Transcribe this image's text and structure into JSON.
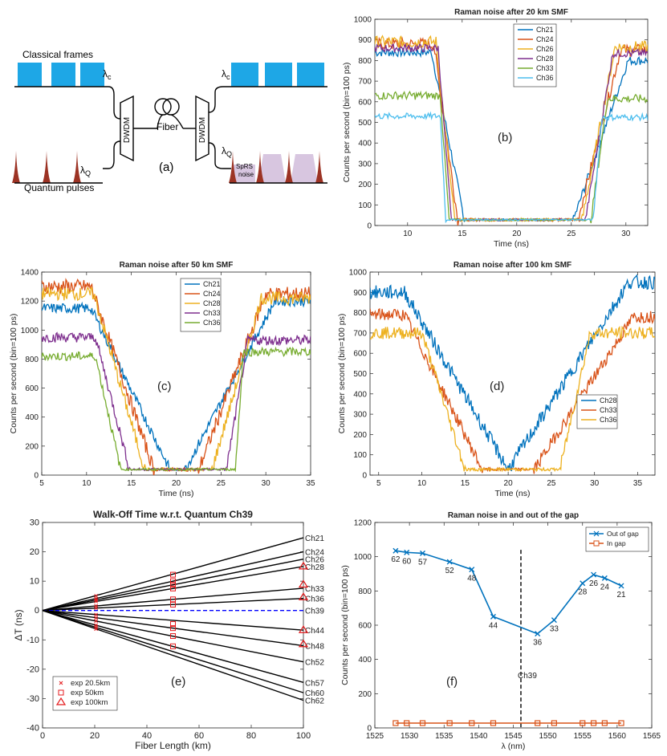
{
  "schematic": {
    "label": "(a)",
    "classical_label": "Classical frames",
    "quantum_label": "Quantum pulses",
    "lambda_c": "λ",
    "lambda_c_sub": "c",
    "lambda_q": "λ",
    "lambda_q_sub": "Q",
    "dwdm": "DWDM",
    "fiber": "Fiber",
    "sprs1": "SpRS",
    "sprs2": "noise",
    "colors": {
      "classical": "#1ea7e6",
      "quantum": "#9c3324",
      "sprs": "#d8c6e0"
    }
  },
  "chart_data": [
    {
      "id": "b",
      "type": "line",
      "panel_label": "(b)",
      "title": "Raman noise after 20 km SMF",
      "xlabel": "Time (ns)",
      "ylabel": "Counts per second (bin=100 ps)",
      "xlim": [
        7,
        32
      ],
      "ylim": [
        0,
        1000
      ],
      "xticks": [
        10,
        15,
        20,
        25,
        30
      ],
      "yticks": [
        0,
        100,
        200,
        300,
        400,
        500,
        600,
        700,
        800,
        900,
        1000
      ],
      "legend_pos": "top-right",
      "series": [
        {
          "name": "Ch21",
          "color": "#0072bd",
          "high": 840,
          "t1": 12.2,
          "t2": 15.2,
          "t3": 25.2,
          "t4": 30.2,
          "noise": 22,
          "end": 800
        },
        {
          "name": "Ch24",
          "color": "#d95319",
          "high": 880,
          "t1": 12.4,
          "t2": 14.6,
          "t3": 25.6,
          "t4": 29.5,
          "noise": 30,
          "end": 850
        },
        {
          "name": "Ch26",
          "color": "#edb120",
          "high": 890,
          "t1": 12.6,
          "t2": 14.3,
          "t3": 26.0,
          "t4": 29.0,
          "noise": 30,
          "end": 865
        },
        {
          "name": "Ch28",
          "color": "#7e2f8e",
          "high": 860,
          "t1": 12.8,
          "t2": 14.0,
          "t3": 26.3,
          "t4": 28.8,
          "noise": 20,
          "end": 835
        },
        {
          "name": "Ch33",
          "color": "#77ac30",
          "high": 630,
          "t1": 13.0,
          "t2": 13.8,
          "t3": 26.8,
          "t4": 28.3,
          "noise": 20,
          "end": 615
        },
        {
          "name": "Ch36",
          "color": "#4dbeee",
          "high": 530,
          "t1": 13.0,
          "t2": 13.5,
          "t3": 27.0,
          "t4": 27.8,
          "noise": 15,
          "end": 525
        }
      ]
    },
    {
      "id": "c",
      "type": "line",
      "panel_label": "(c)",
      "title": "Raman noise after 50 km SMF",
      "xlabel": "Time (ns)",
      "ylabel": "Counts per second (bin=100 ps)",
      "xlim": [
        5,
        35
      ],
      "ylim": [
        0,
        1400
      ],
      "xticks": [
        5,
        10,
        15,
        20,
        25,
        30,
        35
      ],
      "yticks": [
        0,
        200,
        400,
        600,
        800,
        1000,
        1200,
        1400
      ],
      "legend_pos": "top-right",
      "series": [
        {
          "name": "Ch21",
          "color": "#0072bd",
          "high": 1150,
          "t1": 10.5,
          "t2": 19.3,
          "t3": 21.0,
          "t4": 31.0,
          "noise": 35,
          "end": 1200
        },
        {
          "name": "Ch24",
          "color": "#d95319",
          "high": 1300,
          "t1": 10.5,
          "t2": 17.5,
          "t3": 22.5,
          "t4": 30.0,
          "noise": 50,
          "end": 1250
        },
        {
          "name": "Ch28",
          "color": "#edb120",
          "high": 1250,
          "t1": 10.8,
          "t2": 16.5,
          "t3": 24.0,
          "t4": 29.5,
          "noise": 45,
          "end": 1220
        },
        {
          "name": "Ch33",
          "color": "#7e2f8e",
          "high": 950,
          "t1": 11.0,
          "t2": 14.8,
          "t3": 25.6,
          "t4": 28.0,
          "noise": 35,
          "end": 930
        },
        {
          "name": "Ch36",
          "color": "#77ac30",
          "high": 820,
          "t1": 11.0,
          "t2": 13.8,
          "t3": 26.6,
          "t4": 27.5,
          "noise": 30,
          "end": 850
        }
      ]
    },
    {
      "id": "d",
      "type": "line",
      "panel_label": "(d)",
      "title": "Raman noise after 100 km SMF",
      "xlabel": "Time (ns)",
      "ylabel": "Counts per second (bin=100 ps)",
      "xlim": [
        4,
        37
      ],
      "ylim": [
        0,
        1000
      ],
      "xticks": [
        5,
        10,
        15,
        20,
        25,
        30,
        35
      ],
      "yticks": [
        0,
        100,
        200,
        300,
        400,
        500,
        600,
        700,
        800,
        900,
        1000
      ],
      "legend_pos": "right",
      "series": [
        {
          "name": "Ch28",
          "color": "#0072bd",
          "high": 900,
          "t1": 8.0,
          "t2": 20.0,
          "t3": 20.0,
          "t4": 34.0,
          "noise": 35,
          "end": 950
        },
        {
          "name": "Ch33",
          "color": "#d95319",
          "high": 790,
          "t1": 8.0,
          "t2": 17.0,
          "t3": 23.0,
          "t4": 34.5,
          "noise": 30,
          "end": 780
        },
        {
          "name": "Ch36",
          "color": "#edb120",
          "high": 700,
          "t1": 10.0,
          "t2": 15.0,
          "t3": 26.0,
          "t4": 29.5,
          "noise": 30,
          "end": 700
        }
      ]
    },
    {
      "id": "e",
      "type": "line",
      "panel_label": "(e)",
      "title": "Walk-Off Time w.r.t. Quantum Ch39",
      "xlabel": "Fiber Length (km)",
      "ylabel": "ΔT (ns)",
      "xlim": [
        0,
        100
      ],
      "ylim": [
        -40,
        30
      ],
      "xticks": [
        0,
        20,
        40,
        60,
        80,
        100
      ],
      "yticks": [
        -40,
        -30,
        -20,
        -10,
        0,
        10,
        20,
        30
      ],
      "legend_pos": "bottom-left",
      "legend": [
        "exp 20.5km",
        "exp 50km",
        "exp 100km"
      ],
      "channels": [
        {
          "name": "Ch21",
          "end": 24.8
        },
        {
          "name": "Ch24",
          "end": 20.0
        },
        {
          "name": "Ch26",
          "end": 17.5
        },
        {
          "name": "Ch28",
          "end": 15.0
        },
        {
          "name": "Ch33",
          "end": 7.6
        },
        {
          "name": "Ch36",
          "end": 4.1
        },
        {
          "name": "Ch39",
          "end": 0,
          "dashed": true
        },
        {
          "name": "Ch44",
          "end": -6.7
        },
        {
          "name": "Ch48",
          "end": -12.0
        },
        {
          "name": "Ch52",
          "end": -17.5
        },
        {
          "name": "Ch57",
          "end": -24.5
        },
        {
          "name": "Ch60",
          "end": -28.0
        },
        {
          "name": "Ch62",
          "end": -30.6
        }
      ],
      "exp_20km": {
        "x": 20.5,
        "y": [
          5.0,
          4.1,
          3.6,
          3.1,
          1.6,
          0.8,
          -1.4,
          -2.5,
          -3.6,
          -5.0,
          -5.7,
          -6.3
        ]
      },
      "exp_50km": {
        "x": 50,
        "y": [
          12.2,
          10.0,
          8.8,
          7.5,
          3.8,
          2.0,
          -4.6,
          -6.0,
          -8.7,
          -12.2
        ]
      },
      "exp_100km": {
        "x": 100,
        "y": [
          15.0,
          8.8,
          4.5,
          -6.7,
          -11.5
        ]
      }
    },
    {
      "id": "f",
      "type": "line",
      "panel_label": "(f)",
      "title": "Raman noise in and out of the gap",
      "xlabel": "λ (nm)",
      "ylabel": "Counts per second (bin=100 ps)",
      "xlim": [
        1525,
        1565
      ],
      "ylim": [
        0,
        1200
      ],
      "xticks": [
        1525,
        1530,
        1535,
        1540,
        1545,
        1550,
        1555,
        1560,
        1565
      ],
      "yticks": [
        0,
        200,
        400,
        600,
        800,
        1000,
        1200
      ],
      "legend_pos": "top-right",
      "vline": {
        "x": 1546.1,
        "label": "Ch39"
      },
      "series": [
        {
          "name": "Out of gap",
          "color": "#0072bd",
          "x": [
            1528.0,
            1529.6,
            1531.9,
            1535.8,
            1539.0,
            1542.1,
            1548.5,
            1550.9,
            1555.0,
            1556.6,
            1558.2,
            1560.6
          ],
          "y": [
            1035,
            1025,
            1020,
            970,
            925,
            650,
            550,
            630,
            845,
            895,
            875,
            830
          ],
          "labels": [
            "62",
            "60",
            "57",
            "52",
            "48",
            "44",
            "36",
            "33",
            "28",
            "26",
            "24",
            "21"
          ]
        },
        {
          "name": "In gap",
          "color": "#d95319",
          "x": [
            1528.0,
            1529.6,
            1531.9,
            1535.8,
            1539.0,
            1542.1,
            1548.5,
            1550.9,
            1555.0,
            1556.6,
            1558.2,
            1560.6
          ],
          "y": [
            28,
            28,
            28,
            28,
            28,
            28,
            28,
            28,
            28,
            28,
            28,
            28
          ]
        }
      ]
    }
  ]
}
